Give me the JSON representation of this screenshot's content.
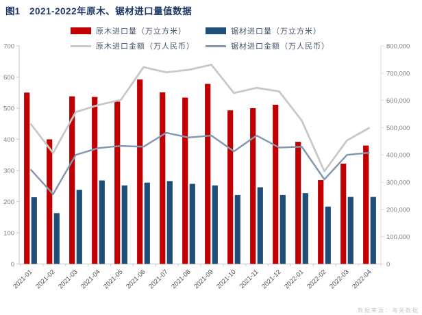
{
  "figure": {
    "label": "图1",
    "title": "2021-2022年原木、锯材进口量值数据"
  },
  "legend": {
    "items": [
      {
        "label": "原木进口量（万立方米）",
        "type": "bar",
        "color": "#c00000"
      },
      {
        "label": "锯材进口量（万立方米）",
        "type": "bar",
        "color": "#1f4e79"
      },
      {
        "label": "原木进口金额（万人民币）",
        "type": "line",
        "color": "#c8c8c8"
      },
      {
        "label": "锯材进口金额（万人民币）",
        "type": "line",
        "color": "#8497b0"
      }
    ]
  },
  "watermark": "数据来源：海关数据",
  "chart_data": {
    "type": "bar+line combo",
    "title": "2021-2022年原木、锯材进口量值数据",
    "categories": [
      "2021-01",
      "2021-02",
      "2021-03",
      "2021-04",
      "2021-05",
      "2021-06",
      "2021-07",
      "2021-08",
      "2021-09",
      "2021-10",
      "2021-11",
      "2021-12",
      "2022-01",
      "2022-02",
      "2022-03",
      "2022-04"
    ],
    "series": [
      {
        "name": "原木进口量",
        "unit": "万立方米",
        "type": "bar",
        "axis": "left",
        "color": "#c00000",
        "values": [
          550,
          400,
          538,
          536,
          521,
          592,
          551,
          534,
          578,
          493,
          500,
          511,
          392,
          269,
          322,
          380
        ]
      },
      {
        "name": "锯材进口量",
        "unit": "万立方米",
        "type": "bar",
        "axis": "left",
        "color": "#1f4e79",
        "values": [
          214,
          163,
          238,
          268,
          252,
          261,
          266,
          257,
          252,
          221,
          246,
          221,
          227,
          184,
          215,
          215
        ]
      },
      {
        "name": "原木进口金额",
        "unit": "万人民币",
        "type": "line",
        "axis": "right",
        "color": "#c8c8c8",
        "values": [
          515000,
          407000,
          557000,
          583000,
          602000,
          722000,
          703000,
          712000,
          731000,
          627000,
          646000,
          633000,
          526000,
          340000,
          453000,
          500000
        ]
      },
      {
        "name": "锯材进口金额",
        "unit": "万人民币",
        "type": "line",
        "axis": "right",
        "color": "#8497b0",
        "values": [
          347000,
          256000,
          400000,
          425000,
          433000,
          430000,
          481000,
          464000,
          471000,
          413000,
          471000,
          427000,
          430000,
          310000,
          400000,
          408000
        ]
      }
    ],
    "left_axis": {
      "min": 0,
      "max": 700,
      "step": 100,
      "tick_labels": [
        "0",
        "100",
        "200",
        "300",
        "400",
        "500",
        "600",
        "700"
      ]
    },
    "right_axis": {
      "min": 0,
      "max": 800000,
      "step": 100000,
      "tick_labels": [
        "0",
        "100,000",
        "200,000",
        "300,000",
        "400,000",
        "500,000",
        "600,000",
        "700,000",
        "800,000"
      ]
    },
    "grid": false,
    "legend_position": "top"
  }
}
